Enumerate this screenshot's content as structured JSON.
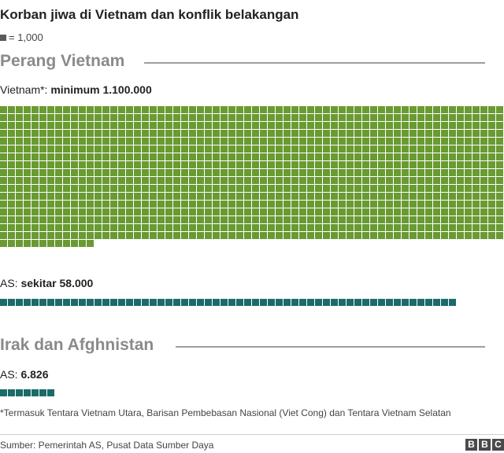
{
  "title": "Korban jiwa di Vietnam dan konflik belakangan",
  "legend": {
    "text": "= 1,000",
    "unit_value": 1000,
    "swatch_color": "#5a5a5a"
  },
  "sections": [
    {
      "title": "Perang Vietnam"
    },
    {
      "title": "Irak dan Afghnistan"
    }
  ],
  "labels": {
    "vietnam_prefix": "Vietnam*: ",
    "vietnam_value": "minimum 1.100.000",
    "us_vietnam_prefix": "AS: ",
    "us_vietnam_value": "sekitar 58.000",
    "us_iraq_prefix": "AS: ",
    "us_iraq_value": "6.826"
  },
  "footnote": "*Termasuk Tentara Vietnam Utara, Barisan Pembebasan Nasional (Viet Cong) dan Tentara Vietnam Selatan",
  "source": "Sumber: Pemerintah AS, Pusat Data Sumber Daya",
  "logo": [
    "B",
    "B",
    "C"
  ],
  "colors": {
    "vietnam": "#6a9a32",
    "us": "#1c6a6a",
    "rule": "#9e9e9e"
  },
  "chart_data": {
    "type": "waffle",
    "unit": 1000,
    "series": [
      {
        "name": "Vietnam*",
        "value": 1100000,
        "color": "#6a9a32"
      },
      {
        "name": "AS",
        "value": 58000,
        "color": "#1c6a6a"
      },
      {
        "name": "AS",
        "value": 6826,
        "color": "#1c6a6a"
      }
    ]
  }
}
